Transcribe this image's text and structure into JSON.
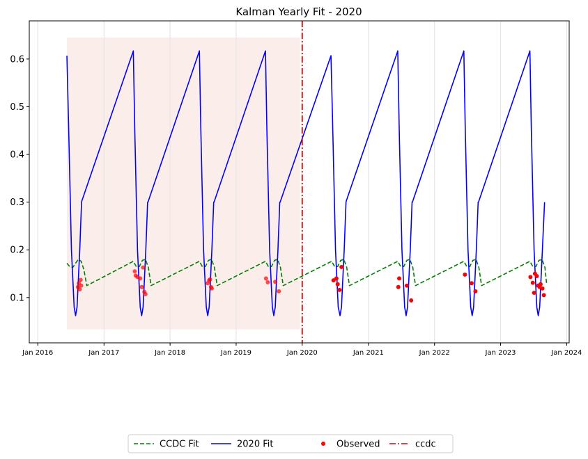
{
  "chart_data": {
    "type": "line",
    "title": "Kalman Yearly Fit - 2020",
    "xlabel": "",
    "ylabel": "",
    "xlim": [
      "2015-11-15",
      "2024-01-15"
    ],
    "ylim": [
      0.005,
      0.68
    ],
    "x_ticks": [
      "2016-01-01",
      "2017-01-01",
      "2018-01-01",
      "2019-01-01",
      "2020-01-01",
      "2021-01-01",
      "2022-01-01",
      "2023-01-01",
      "2024-01-01"
    ],
    "x_tick_labels": [
      "Jan 2016",
      "Jan 2017",
      "Jan 2018",
      "Jan 2019",
      "Jan 2020",
      "Jan 2021",
      "Jan 2022",
      "Jan 2023",
      "Jan 2024"
    ],
    "y_ticks": [
      0.1,
      0.2,
      0.3,
      0.4,
      0.5,
      0.6
    ],
    "y_tick_labels": [
      "0.1",
      "0.2",
      "0.3",
      "0.4",
      "0.5",
      "0.6"
    ],
    "grid": "vertical",
    "shaded_region": {
      "x_start": "2016-06-10",
      "x_end": "2019-12-20",
      "y_start": 0.033,
      "y_end": 0.645,
      "color": "#fbeeea"
    },
    "vertical_line": {
      "name": "ccdc",
      "x": "2020-01-01",
      "color": "#e00000",
      "style": "dash-dot"
    },
    "series": [
      {
        "name": "CCDC Fit",
        "kind": "line",
        "color": "#008000",
        "style": "dashed",
        "points": [
          [
            "2016-06-10",
            0.172
          ],
          [
            "2016-06-25",
            0.165
          ],
          [
            "2016-07-12",
            0.163
          ],
          [
            "2016-07-28",
            0.172
          ],
          [
            "2016-08-12",
            0.18
          ],
          [
            "2016-08-28",
            0.176
          ],
          [
            "2016-09-12",
            0.158
          ],
          [
            "2016-09-28",
            0.125
          ],
          [
            "2017-06-12",
            0.176
          ],
          [
            "2017-06-28",
            0.165
          ],
          [
            "2017-07-15",
            0.165
          ],
          [
            "2017-08-01",
            0.178
          ],
          [
            "2017-08-18",
            0.18
          ],
          [
            "2017-09-03",
            0.163
          ],
          [
            "2017-09-18",
            0.125
          ],
          [
            "2018-06-12",
            0.176
          ],
          [
            "2018-06-28",
            0.165
          ],
          [
            "2018-07-15",
            0.165
          ],
          [
            "2018-08-01",
            0.178
          ],
          [
            "2018-08-18",
            0.18
          ],
          [
            "2018-09-03",
            0.163
          ],
          [
            "2018-09-18",
            0.125
          ],
          [
            "2019-06-12",
            0.176
          ],
          [
            "2019-06-28",
            0.165
          ],
          [
            "2019-07-15",
            0.165
          ],
          [
            "2019-08-01",
            0.178
          ],
          [
            "2019-08-18",
            0.18
          ],
          [
            "2019-09-03",
            0.163
          ],
          [
            "2019-09-18",
            0.125
          ],
          [
            "2020-06-12",
            0.176
          ],
          [
            "2020-06-28",
            0.165
          ],
          [
            "2020-07-15",
            0.165
          ],
          [
            "2020-08-01",
            0.178
          ],
          [
            "2020-08-18",
            0.18
          ],
          [
            "2020-09-03",
            0.163
          ],
          [
            "2020-09-18",
            0.125
          ],
          [
            "2021-06-12",
            0.176
          ],
          [
            "2021-06-28",
            0.165
          ],
          [
            "2021-07-15",
            0.165
          ],
          [
            "2021-08-01",
            0.178
          ],
          [
            "2021-08-18",
            0.18
          ],
          [
            "2021-09-03",
            0.163
          ],
          [
            "2021-09-18",
            0.125
          ],
          [
            "2022-06-12",
            0.176
          ],
          [
            "2022-06-28",
            0.165
          ],
          [
            "2022-07-15",
            0.165
          ],
          [
            "2022-08-01",
            0.178
          ],
          [
            "2022-08-18",
            0.18
          ],
          [
            "2022-09-03",
            0.163
          ],
          [
            "2022-09-18",
            0.125
          ],
          [
            "2023-06-12",
            0.176
          ],
          [
            "2023-06-28",
            0.165
          ],
          [
            "2023-07-15",
            0.165
          ],
          [
            "2023-08-01",
            0.178
          ],
          [
            "2023-08-18",
            0.18
          ],
          [
            "2023-09-03",
            0.163
          ],
          [
            "2023-09-12",
            0.13
          ]
        ]
      },
      {
        "name": "2020 Fit",
        "kind": "line",
        "color": "#0000ff",
        "style": "solid",
        "points": [
          [
            "2016-06-10",
            0.607
          ],
          [
            "2016-06-20",
            0.45
          ],
          [
            "2016-07-05",
            0.2
          ],
          [
            "2016-07-20",
            0.08
          ],
          [
            "2016-07-28",
            0.062
          ],
          [
            "2016-08-05",
            0.08
          ],
          [
            "2016-08-20",
            0.2
          ],
          [
            "2016-08-30",
            0.3
          ],
          [
            "2016-09-01",
            0.303
          ],
          [
            "2017-06-12",
            0.617
          ],
          [
            "2017-06-20",
            0.45
          ],
          [
            "2017-07-05",
            0.2
          ],
          [
            "2017-07-20",
            0.08
          ],
          [
            "2017-07-28",
            0.062
          ],
          [
            "2017-08-05",
            0.08
          ],
          [
            "2017-08-20",
            0.2
          ],
          [
            "2017-08-30",
            0.3
          ],
          [
            "2017-09-01",
            0.3
          ],
          [
            "2018-06-12",
            0.617
          ],
          [
            "2018-06-20",
            0.45
          ],
          [
            "2018-07-05",
            0.2
          ],
          [
            "2018-07-20",
            0.08
          ],
          [
            "2018-07-28",
            0.062
          ],
          [
            "2018-08-05",
            0.08
          ],
          [
            "2018-08-20",
            0.2
          ],
          [
            "2018-08-30",
            0.3
          ],
          [
            "2018-09-01",
            0.3
          ],
          [
            "2019-06-12",
            0.617
          ],
          [
            "2019-06-20",
            0.45
          ],
          [
            "2019-07-05",
            0.2
          ],
          [
            "2019-07-20",
            0.08
          ],
          [
            "2019-07-28",
            0.062
          ],
          [
            "2019-08-05",
            0.08
          ],
          [
            "2019-08-20",
            0.2
          ],
          [
            "2019-08-30",
            0.3
          ],
          [
            "2019-09-01",
            0.3
          ],
          [
            "2020-06-08",
            0.607
          ],
          [
            "2020-06-18",
            0.45
          ],
          [
            "2020-07-03",
            0.2
          ],
          [
            "2020-07-18",
            0.08
          ],
          [
            "2020-07-28",
            0.062
          ],
          [
            "2020-08-05",
            0.08
          ],
          [
            "2020-08-20",
            0.2
          ],
          [
            "2020-08-30",
            0.3
          ],
          [
            "2020-09-01",
            0.303
          ],
          [
            "2021-06-12",
            0.617
          ],
          [
            "2021-06-20",
            0.45
          ],
          [
            "2021-07-05",
            0.2
          ],
          [
            "2021-07-20",
            0.08
          ],
          [
            "2021-07-28",
            0.062
          ],
          [
            "2021-08-05",
            0.08
          ],
          [
            "2021-08-20",
            0.2
          ],
          [
            "2021-08-30",
            0.3
          ],
          [
            "2021-09-01",
            0.3
          ],
          [
            "2022-06-12",
            0.617
          ],
          [
            "2022-06-20",
            0.45
          ],
          [
            "2022-07-05",
            0.2
          ],
          [
            "2022-07-20",
            0.08
          ],
          [
            "2022-07-28",
            0.062
          ],
          [
            "2022-08-05",
            0.08
          ],
          [
            "2022-08-20",
            0.2
          ],
          [
            "2022-08-30",
            0.3
          ],
          [
            "2022-09-01",
            0.3
          ],
          [
            "2023-06-12",
            0.617
          ],
          [
            "2023-06-20",
            0.45
          ],
          [
            "2023-07-05",
            0.2
          ],
          [
            "2023-07-20",
            0.08
          ],
          [
            "2023-07-28",
            0.062
          ],
          [
            "2023-08-05",
            0.08
          ],
          [
            "2023-08-20",
            0.2
          ],
          [
            "2023-09-01",
            0.3
          ]
        ]
      },
      {
        "name": "Observed",
        "kind": "scatter",
        "color": "#ff0000",
        "points": [
          [
            "2016-08-10",
            0.122
          ],
          [
            "2016-08-15",
            0.13
          ],
          [
            "2016-08-20",
            0.117
          ],
          [
            "2016-08-25",
            0.137
          ],
          [
            "2016-08-28",
            0.125
          ],
          [
            "2017-06-20",
            0.155
          ],
          [
            "2017-06-25",
            0.146
          ],
          [
            "2017-07-05",
            0.143
          ],
          [
            "2017-07-20",
            0.14
          ],
          [
            "2017-07-28",
            0.122
          ],
          [
            "2017-08-05",
            0.163
          ],
          [
            "2017-08-12",
            0.112
          ],
          [
            "2017-08-18",
            0.107
          ],
          [
            "2018-07-28",
            0.13
          ],
          [
            "2018-08-05",
            0.136
          ],
          [
            "2018-08-10",
            0.138
          ],
          [
            "2018-08-15",
            0.122
          ],
          [
            "2018-08-20",
            0.119
          ],
          [
            "2019-06-15",
            0.14
          ],
          [
            "2019-06-25",
            0.132
          ],
          [
            "2019-08-05",
            0.133
          ],
          [
            "2019-08-25",
            0.113
          ],
          [
            "2020-06-22",
            0.136
          ],
          [
            "2020-07-08",
            0.14
          ],
          [
            "2020-07-15",
            0.128
          ],
          [
            "2020-07-25",
            0.116
          ],
          [
            "2020-08-05",
            0.164
          ],
          [
            "2021-06-15",
            0.122
          ],
          [
            "2021-06-20",
            0.14
          ],
          [
            "2021-08-01",
            0.125
          ],
          [
            "2021-08-25",
            0.094
          ],
          [
            "2022-06-18",
            0.148
          ],
          [
            "2022-07-25",
            0.13
          ],
          [
            "2022-08-15",
            0.113
          ],
          [
            "2023-06-15",
            0.143
          ],
          [
            "2023-06-28",
            0.131
          ],
          [
            "2023-07-05",
            0.11
          ],
          [
            "2023-07-10",
            0.15
          ],
          [
            "2023-07-20",
            0.145
          ],
          [
            "2023-07-28",
            0.125
          ],
          [
            "2023-08-05",
            0.122
          ],
          [
            "2023-08-10",
            0.128
          ],
          [
            "2023-08-20",
            0.119
          ],
          [
            "2023-08-28",
            0.105
          ]
        ]
      }
    ],
    "legend": {
      "placement": "bottom-center",
      "entries": [
        {
          "label": "CCDC Fit",
          "kind": "dashed-line",
          "color": "#008000"
        },
        {
          "label": "2020 Fit",
          "kind": "solid-line",
          "color": "#0000ff"
        },
        {
          "label": "Observed",
          "kind": "marker",
          "color": "#ff0000"
        },
        {
          "label": "ccdc",
          "kind": "dashdot-line",
          "color": "#e00000"
        }
      ]
    }
  }
}
